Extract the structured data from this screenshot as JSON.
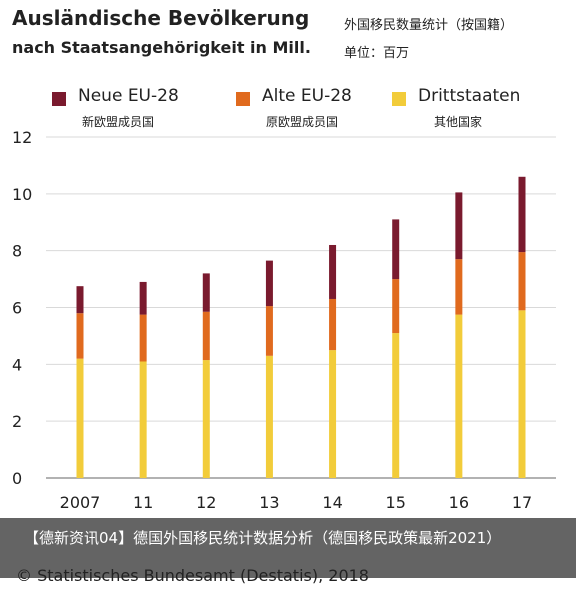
{
  "header": {
    "title_line1": "Ausländische Bevölkerung",
    "title_line2": "nach Staatsangehörigkeit in Mill.",
    "cn_title": "外国移民数量统计（按国籍）",
    "cn_unit": "单位：百万"
  },
  "legend": [
    {
      "label": "Neue EU-28",
      "cn": "新欧盟成员国",
      "color": "#7a1a2e"
    },
    {
      "label": "Alte EU-28",
      "cn": "原欧盟成员国",
      "color": "#e06a1e"
    },
    {
      "label": "Drittstaaten",
      "cn": "其他国家",
      "color": "#f2cc3a"
    }
  ],
  "chart_data": {
    "type": "bar",
    "stacked": true,
    "categories": [
      "2007",
      "11",
      "12",
      "13",
      "14",
      "15",
      "16",
      "17"
    ],
    "series": [
      {
        "name": "Drittstaaten",
        "color": "#f2cc3a",
        "values": [
          4.2,
          4.1,
          4.15,
          4.3,
          4.5,
          5.1,
          5.75,
          5.9
        ]
      },
      {
        "name": "Alte EU-28",
        "color": "#e06a1e",
        "values": [
          1.6,
          1.65,
          1.7,
          1.75,
          1.8,
          1.9,
          1.95,
          2.05
        ]
      },
      {
        "name": "Neue EU-28",
        "color": "#7a1a2e",
        "values": [
          0.95,
          1.15,
          1.35,
          1.6,
          1.9,
          2.1,
          2.35,
          2.65
        ]
      }
    ],
    "ylim": [
      0,
      12
    ],
    "yticks": [
      "0",
      "2",
      "4",
      "6",
      "8",
      "10",
      "12"
    ],
    "grid": true,
    "legend_position": "top"
  },
  "overlay": {
    "text": "【德新资讯04】德国外国移民统计数据分析（德国移民政策最新2021）"
  },
  "source": {
    "text": "© Statistisches Bundesamt (Destatis), 2018"
  }
}
